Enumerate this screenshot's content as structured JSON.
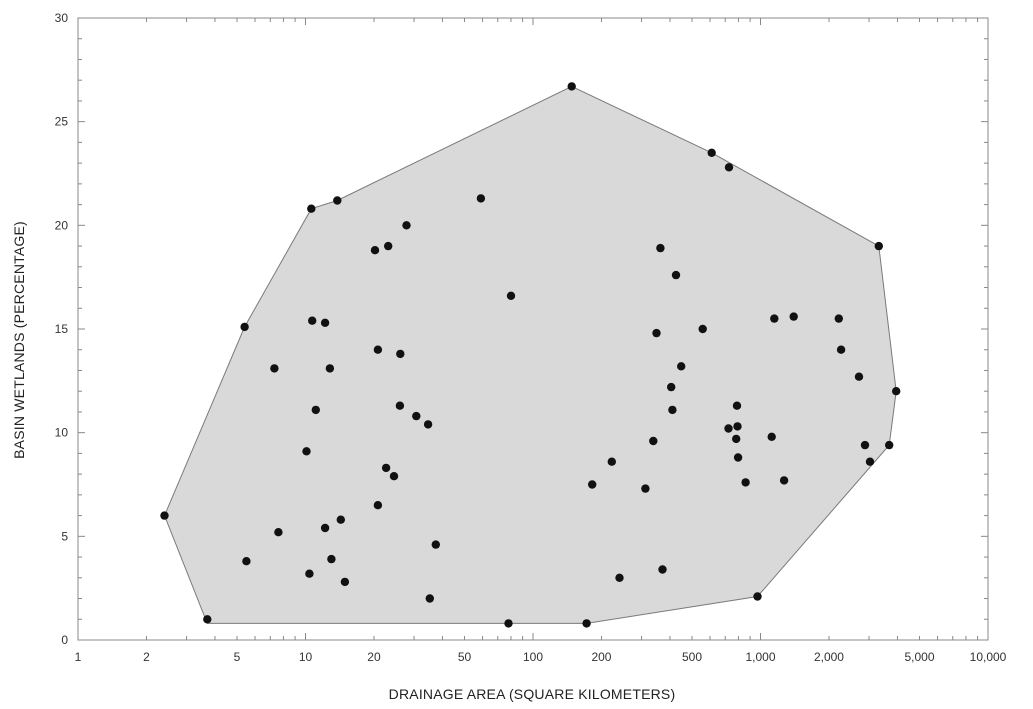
{
  "chart_data": {
    "type": "scatter",
    "title": "",
    "xlabel": "DRAINAGE AREA (SQUARE KILOMETERS)",
    "ylabel": "BASIN WETLANDS (PERCENTAGE)",
    "x_scale": "log",
    "xlim": [
      1,
      10000
    ],
    "ylim": [
      0,
      30
    ],
    "grid": false,
    "legend": "none",
    "x_tick_labels": [
      {
        "value": 1,
        "label": "1"
      },
      {
        "value": 2,
        "label": "2"
      },
      {
        "value": 5,
        "label": "5"
      },
      {
        "value": 10,
        "label": "10"
      },
      {
        "value": 20,
        "label": "20"
      },
      {
        "value": 50,
        "label": "50"
      },
      {
        "value": 100,
        "label": "100"
      },
      {
        "value": 200,
        "label": "200"
      },
      {
        "value": 500,
        "label": "500"
      },
      {
        "value": 1000,
        "label": "1,000"
      },
      {
        "value": 2000,
        "label": "2,000"
      },
      {
        "value": 5000,
        "label": "5,000"
      },
      {
        "value": 10000,
        "label": "10,000"
      }
    ],
    "y_tick_labels": [
      {
        "value": 0,
        "label": "0"
      },
      {
        "value": 5,
        "label": "5"
      },
      {
        "value": 10,
        "label": "10"
      },
      {
        "value": 15,
        "label": "15"
      },
      {
        "value": 20,
        "label": "20"
      },
      {
        "value": 25,
        "label": "25"
      },
      {
        "value": 30,
        "label": "30"
      }
    ],
    "colors": {
      "points": "#111111",
      "hull_fill": "#d9d9d9",
      "hull_stroke": "#7a7a7a",
      "axes": "#888888"
    },
    "points": [
      {
        "x": 2.4,
        "y": 6.0
      },
      {
        "x": 3.7,
        "y": 1.0
      },
      {
        "x": 5.4,
        "y": 15.1
      },
      {
        "x": 5.5,
        "y": 3.8
      },
      {
        "x": 7.3,
        "y": 13.1
      },
      {
        "x": 7.6,
        "y": 5.2
      },
      {
        "x": 10.1,
        "y": 9.1
      },
      {
        "x": 10.4,
        "y": 3.2
      },
      {
        "x": 10.6,
        "y": 20.8
      },
      {
        "x": 10.7,
        "y": 15.4
      },
      {
        "x": 11.1,
        "y": 11.1
      },
      {
        "x": 12.2,
        "y": 15.3
      },
      {
        "x": 12.2,
        "y": 5.4
      },
      {
        "x": 12.8,
        "y": 13.1
      },
      {
        "x": 13.0,
        "y": 3.9
      },
      {
        "x": 13.8,
        "y": 21.2
      },
      {
        "x": 14.3,
        "y": 5.8
      },
      {
        "x": 14.9,
        "y": 2.8
      },
      {
        "x": 20.2,
        "y": 18.8
      },
      {
        "x": 20.8,
        "y": 14.0
      },
      {
        "x": 20.8,
        "y": 6.5
      },
      {
        "x": 22.6,
        "y": 8.3
      },
      {
        "x": 23.1,
        "y": 19.0
      },
      {
        "x": 24.5,
        "y": 7.9
      },
      {
        "x": 26.0,
        "y": 11.3
      },
      {
        "x": 26.1,
        "y": 13.8
      },
      {
        "x": 27.8,
        "y": 20.0
      },
      {
        "x": 30.7,
        "y": 10.8
      },
      {
        "x": 34.6,
        "y": 10.4
      },
      {
        "x": 35.2,
        "y": 2.0
      },
      {
        "x": 37.4,
        "y": 4.6
      },
      {
        "x": 59,
        "y": 21.3
      },
      {
        "x": 78,
        "y": 0.8
      },
      {
        "x": 80,
        "y": 16.6
      },
      {
        "x": 148,
        "y": 26.7
      },
      {
        "x": 172,
        "y": 0.8
      },
      {
        "x": 182,
        "y": 7.5
      },
      {
        "x": 222,
        "y": 8.6
      },
      {
        "x": 240,
        "y": 3.0
      },
      {
        "x": 312,
        "y": 7.3
      },
      {
        "x": 338,
        "y": 9.6
      },
      {
        "x": 349,
        "y": 14.8
      },
      {
        "x": 363,
        "y": 18.9
      },
      {
        "x": 371,
        "y": 3.4
      },
      {
        "x": 405,
        "y": 12.2
      },
      {
        "x": 410,
        "y": 11.1
      },
      {
        "x": 425,
        "y": 17.6
      },
      {
        "x": 448,
        "y": 13.2
      },
      {
        "x": 557,
        "y": 15.0
      },
      {
        "x": 610,
        "y": 23.5
      },
      {
        "x": 723,
        "y": 10.2
      },
      {
        "x": 727,
        "y": 22.8
      },
      {
        "x": 782,
        "y": 9.7
      },
      {
        "x": 788,
        "y": 11.3
      },
      {
        "x": 792,
        "y": 10.3
      },
      {
        "x": 797,
        "y": 8.8
      },
      {
        "x": 860,
        "y": 7.6
      },
      {
        "x": 970,
        "y": 2.1
      },
      {
        "x": 1120,
        "y": 9.8
      },
      {
        "x": 1150,
        "y": 15.5
      },
      {
        "x": 1270,
        "y": 7.7
      },
      {
        "x": 1400,
        "y": 15.6
      },
      {
        "x": 2210,
        "y": 15.5
      },
      {
        "x": 2260,
        "y": 14.0
      },
      {
        "x": 2710,
        "y": 12.7
      },
      {
        "x": 2880,
        "y": 9.4
      },
      {
        "x": 3030,
        "y": 8.6
      },
      {
        "x": 3310,
        "y": 19.0
      },
      {
        "x": 3680,
        "y": 9.4
      },
      {
        "x": 3950,
        "y": 12.0
      }
    ],
    "hull": [
      {
        "x": 2.4,
        "y": 6.0
      },
      {
        "x": 3.7,
        "y": 0.8
      },
      {
        "x": 172,
        "y": 0.8
      },
      {
        "x": 970,
        "y": 2.1
      },
      {
        "x": 3680,
        "y": 9.4
      },
      {
        "x": 3950,
        "y": 12.0
      },
      {
        "x": 3310,
        "y": 19.0
      },
      {
        "x": 610,
        "y": 23.5
      },
      {
        "x": 148,
        "y": 26.7
      },
      {
        "x": 13.8,
        "y": 21.2
      },
      {
        "x": 10.6,
        "y": 20.8
      },
      {
        "x": 5.4,
        "y": 15.1
      }
    ]
  }
}
